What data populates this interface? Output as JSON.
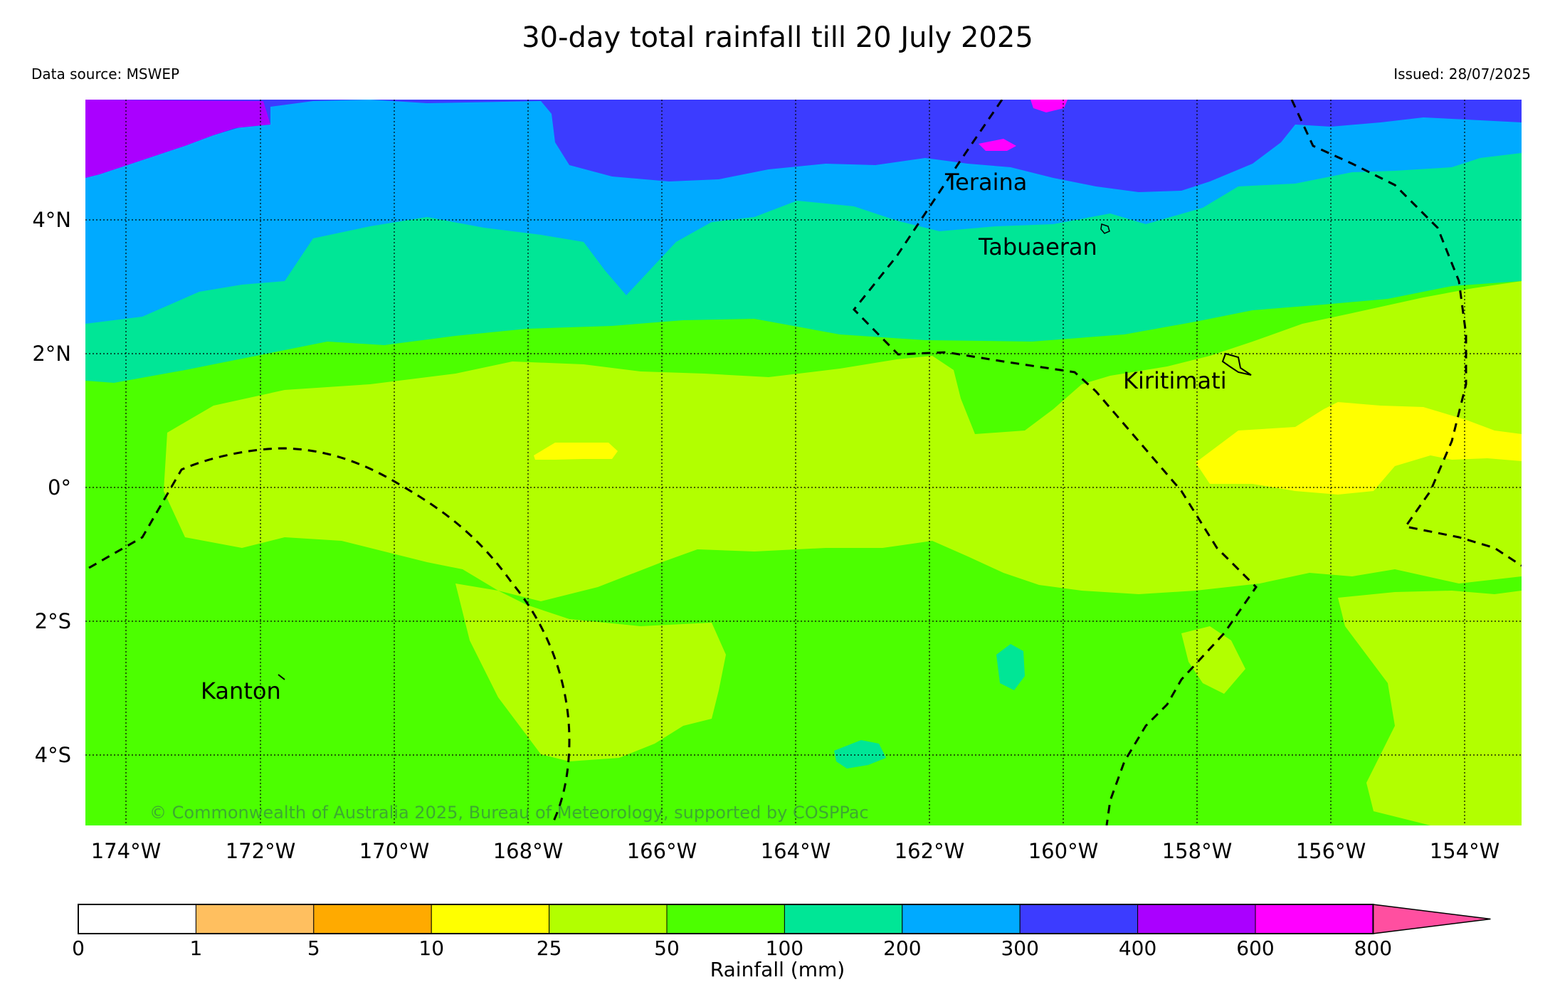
{
  "title": "30-day total rainfall till 20 July 2025",
  "data_source": "Data source: MSWEP",
  "issued": "Issued: 28/07/2025",
  "copyright": "© Commonwealth of Australia 2025, Bureau of Meteorology, supported by COSPPac",
  "lon_ticks": [
    "174°W",
    "172°W",
    "170°W",
    "168°W",
    "166°W",
    "164°W",
    "162°W",
    "160°W",
    "158°W",
    "156°W",
    "154°W"
  ],
  "lat_ticks": [
    "4°N",
    "2°N",
    "0°",
    "2°S",
    "4°S"
  ],
  "places": [
    "Teraina",
    "Tabuaeran",
    "Kiritimati",
    "Kanton"
  ],
  "legend": {
    "label": "Rainfall (mm)",
    "ticks": [
      "0",
      "1",
      "5",
      "10",
      "25",
      "50",
      "100",
      "200",
      "300",
      "400",
      "600",
      "800"
    ],
    "bands": [
      {
        "range": "0-1",
        "color": "#ffffff"
      },
      {
        "range": "1-5",
        "color": "#ffbf5f"
      },
      {
        "range": "5-10",
        "color": "#ffaa00"
      },
      {
        "range": "10-25",
        "color": "#ffff00"
      },
      {
        "range": "25-50",
        "color": "#b2ff00"
      },
      {
        "range": "50-100",
        "color": "#4cff00"
      },
      {
        "range": "100-200",
        "color": "#00e696"
      },
      {
        "range": "200-300",
        "color": "#00aaff"
      },
      {
        "range": "300-400",
        "color": "#3c3cff"
      },
      {
        "range": "400-600",
        "color": "#aa00ff"
      },
      {
        "range": "600-800",
        "color": "#ff00ff"
      },
      {
        "range": ">800",
        "color": "#ff4fa0"
      }
    ]
  }
}
